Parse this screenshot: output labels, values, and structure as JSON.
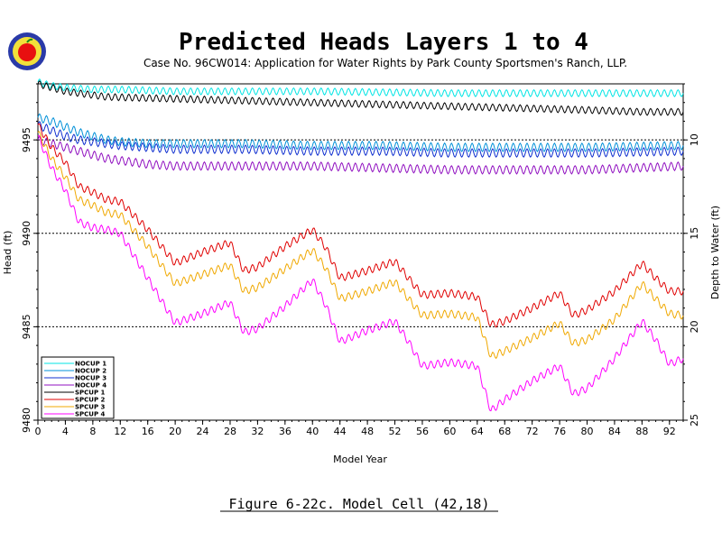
{
  "chart_data": {
    "type": "line",
    "title": "Predicted Heads Layers 1 to 4",
    "subtitle": "Case No. 96CW014: Application for Water Rights by Park County Sportsmen's Ranch, LLP.",
    "xlabel": "Model Year",
    "ylabel": "Head (ft)",
    "y2label": "Depth to Water (ft)",
    "caption": "Figure 6-22c.  Model Cell (42,18)",
    "xlim": [
      0,
      94
    ],
    "ylim": [
      9480,
      9498
    ],
    "y2lim": [
      25,
      7
    ],
    "x_ticks": [
      "0",
      "4",
      "8",
      "12",
      "16",
      "20",
      "24",
      "28",
      "32",
      "36",
      "40",
      "44",
      "48",
      "52",
      "56",
      "60",
      "64",
      "68",
      "72",
      "76",
      "80",
      "84",
      "88",
      "92"
    ],
    "y_ticks": [
      "9480",
      "9485",
      "9490",
      "9495"
    ],
    "y2_ticks": [
      "25",
      "20",
      "15",
      "10"
    ],
    "grid": "dashed horizontal at 9480, 9485, 9490, 9495",
    "legend": "bottom-left",
    "series": [
      {
        "name": "NOCUP  1",
        "color": "#00e5e5",
        "x": [
          0,
          2,
          4,
          8,
          12,
          20,
          40,
          60,
          80,
          94
        ],
        "y": [
          9498.1,
          9497.9,
          9497.8,
          9497.7,
          9497.7,
          9497.6,
          9497.6,
          9497.5,
          9497.5,
          9497.5
        ]
      },
      {
        "name": "NOCUP  2",
        "color": "#0090d8",
        "x": [
          0,
          2,
          4,
          6,
          8,
          10,
          12,
          16,
          20,
          30,
          40,
          50,
          60,
          70,
          80,
          94
        ],
        "y": [
          9496.2,
          9496.0,
          9495.7,
          9495.4,
          9495.2,
          9495.0,
          9494.9,
          9494.8,
          9494.8,
          9494.8,
          9494.7,
          9494.7,
          9494.6,
          9494.6,
          9494.6,
          9494.7
        ]
      },
      {
        "name": "NOCUP  3",
        "color": "#1030d0",
        "x": [
          0,
          2,
          4,
          6,
          8,
          10,
          12,
          16,
          20,
          30,
          40,
          50,
          60,
          70,
          80,
          94
        ],
        "y": [
          9495.8,
          9495.5,
          9495.2,
          9495.0,
          9494.9,
          9494.8,
          9494.7,
          9494.6,
          9494.5,
          9494.5,
          9494.4,
          9494.4,
          9494.3,
          9494.3,
          9494.3,
          9494.4
        ]
      },
      {
        "name": "NOCUP  4",
        "color": "#9010c0",
        "x": [
          0,
          2,
          4,
          6,
          8,
          10,
          12,
          16,
          20,
          30,
          40,
          50,
          60,
          70,
          80,
          94
        ],
        "y": [
          9495.0,
          9494.8,
          9494.6,
          9494.4,
          9494.2,
          9494.0,
          9493.9,
          9493.7,
          9493.6,
          9493.6,
          9493.6,
          9493.5,
          9493.4,
          9493.4,
          9493.4,
          9493.6
        ]
      },
      {
        "name": "SPCUP  1",
        "color": "#000000",
        "x": [
          0,
          4,
          10,
          20,
          30,
          40,
          50,
          60,
          70,
          80,
          88,
          94
        ],
        "y": [
          9498.0,
          9497.6,
          9497.3,
          9497.2,
          9497.1,
          9497.0,
          9496.9,
          9496.8,
          9496.7,
          9496.6,
          9496.5,
          9496.5
        ]
      },
      {
        "name": "SPCUP  2",
        "color": "#e00000",
        "x": [
          0,
          2,
          4,
          6,
          8,
          10,
          12,
          16,
          20,
          24,
          28,
          30,
          32,
          36,
          40,
          42,
          44,
          48,
          52,
          54,
          56,
          60,
          64,
          66,
          68,
          72,
          76,
          78,
          80,
          84,
          88,
          90,
          92,
          94
        ],
        "y": [
          9495.8,
          9494.6,
          9493.8,
          9492.5,
          9492.2,
          9491.8,
          9491.7,
          9490.2,
          9488.4,
          9489.0,
          9489.5,
          9488.0,
          9488.2,
          9489.3,
          9490.2,
          9489.2,
          9487.6,
          9488.0,
          9488.5,
          9487.6,
          9486.7,
          9486.8,
          9486.6,
          9485.1,
          9485.3,
          9486.0,
          9486.8,
          9485.6,
          9485.9,
          9486.9,
          9488.4,
          9487.6,
          9486.9,
          9486.9
        ]
      },
      {
        "name": "SPCUP  3",
        "color": "#f0a800",
        "x": [
          0,
          2,
          4,
          6,
          8,
          10,
          12,
          16,
          20,
          24,
          28,
          30,
          32,
          36,
          40,
          42,
          44,
          48,
          52,
          54,
          56,
          60,
          64,
          66,
          68,
          72,
          76,
          78,
          80,
          84,
          88,
          90,
          92,
          94
        ],
        "y": [
          9495.4,
          9494.0,
          9493.0,
          9491.8,
          9491.5,
          9491.1,
          9491.0,
          9489.3,
          9487.3,
          9487.8,
          9488.3,
          9486.9,
          9487.1,
          9488.1,
          9489.1,
          9488.1,
          9486.5,
          9486.9,
          9487.4,
          9486.5,
          9485.6,
          9485.7,
          9485.5,
          9483.4,
          9483.7,
          9484.4,
          9485.2,
          9484.1,
          9484.3,
          9485.4,
          9487.3,
          9486.5,
          9485.7,
          9485.6
        ]
      },
      {
        "name": "SPCUP  4",
        "color": "#ff00ff",
        "x": [
          0,
          2,
          4,
          6,
          8,
          10,
          12,
          16,
          20,
          24,
          28,
          30,
          32,
          36,
          40,
          42,
          44,
          48,
          52,
          54,
          56,
          60,
          64,
          66,
          68,
          72,
          76,
          78,
          80,
          84,
          88,
          90,
          92,
          94
        ],
        "y": [
          9495.2,
          9493.5,
          9492.3,
          9490.6,
          9490.3,
          9490.2,
          9490.0,
          9487.6,
          9485.2,
          9485.7,
          9486.3,
          9484.7,
          9484.9,
          9486.1,
          9487.5,
          9486.1,
          9484.2,
          9484.8,
          9485.3,
          9484.2,
          9482.9,
          9483.1,
          9482.9,
          9480.5,
          9481.1,
          9482.1,
          9482.9,
          9481.4,
          9481.7,
          9483.3,
          9485.3,
          9484.3,
          9483.0,
          9483.3
        ]
      }
    ]
  }
}
